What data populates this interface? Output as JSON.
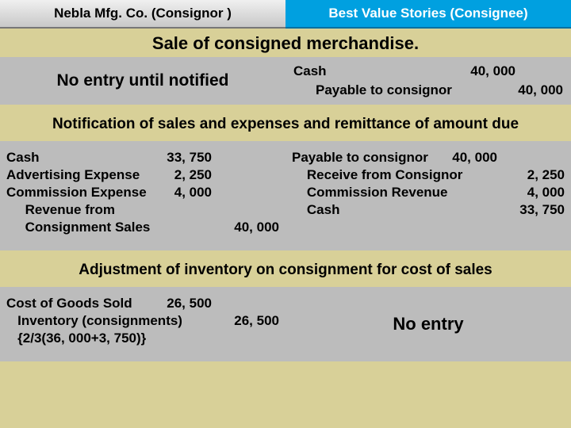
{
  "header": {
    "consignor": "Nebla Mfg. Co. (Consignor )",
    "consignee": "Best Value Stories (Consignee)"
  },
  "section1": {
    "title": "Sale of consigned merchandise.",
    "left": "No entry until notified",
    "right": {
      "line1_acct": "Cash",
      "line1_amt": "40, 000",
      "line2_acct": "Payable to consignor",
      "line2_amt": "40, 000"
    }
  },
  "section2": {
    "title": "Notification of sales and expenses and remittance of amount due",
    "left": {
      "r1_acct": "Cash",
      "r1_a1": "33, 750",
      "r1_a2": "",
      "r2_acct": "Advertising Expense",
      "r2_a1": "2, 250",
      "r2_a2": "",
      "r3_acct": "Commission Expense",
      "r3_a1": "4, 000",
      "r3_a2": "",
      "r4_acct": "     Revenue from",
      "r4_a1": "",
      "r4_a2": "",
      "r5_acct": "     Consignment Sales",
      "r5_a1": "",
      "r5_a2": "40, 000"
    },
    "right": {
      "r1_acct": "Payable to consignor",
      "r1_a1": "40, 000",
      "r1_a2": "",
      "r2_acct": "    Receive from Consignor",
      "r2_a1": "",
      "r2_a2": "2, 250",
      "r3_acct": "    Commission Revenue",
      "r3_a1": "",
      "r3_a2": "4, 000",
      "r4_acct": "    Cash",
      "r4_a1": "",
      "r4_a2": "33, 750"
    }
  },
  "section3": {
    "title": "Adjustment of inventory on consignment for cost of sales",
    "left": {
      "r1_acct": "Cost of Goods Sold",
      "r1_a1": "26, 500",
      "r1_a2": "",
      "r2_acct": "   Inventory (consignments)",
      "r2_a1": "",
      "r2_a2": "26, 500",
      "r3_acct": "   {2/3(36, 000+3, 750)}",
      "r3_a1": "",
      "r3_a2": ""
    },
    "right": "No entry"
  },
  "colors": {
    "band_tan": "#d8d098",
    "band_gray": "#bcbcbc",
    "header_blue": "#00a0e0"
  }
}
